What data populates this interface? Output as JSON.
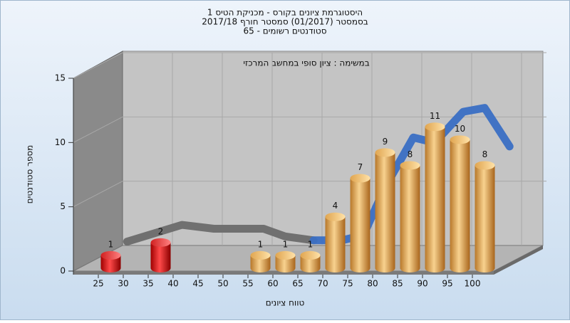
{
  "chart_data": {
    "type": "histogram",
    "title_lines": [
      "היסטוגרמת ציונים בקורס - מכניקת הטיס 1",
      "בסמסטר  (01/2017)  סמסטר חורף 2017/18",
      "סטודנטים רשומים - 65"
    ],
    "annotation": "במשימה : ציון סופי במחשב המרכזי",
    "xlabel": "טווח ציונים",
    "ylabel": "מספר סטודנטים",
    "bins": [
      25,
      30,
      35,
      40,
      45,
      50,
      55,
      60,
      65,
      70,
      75,
      80,
      85,
      90,
      95,
      100,
      105
    ],
    "values": [
      1,
      0,
      2,
      0,
      0,
      0,
      1,
      1,
      1,
      4,
      7,
      9,
      8,
      11,
      10,
      8
    ],
    "colors": [
      "red",
      "red",
      "red",
      "red",
      "red",
      "red",
      "orange",
      "orange",
      "orange",
      "orange",
      "orange",
      "orange",
      "orange",
      "orange",
      "orange",
      "orange"
    ],
    "xlim": [
      20,
      105
    ],
    "xticks": [
      25,
      30,
      35,
      40,
      45,
      50,
      55,
      60,
      65,
      70,
      75,
      80,
      85,
      90,
      95,
      100
    ],
    "ylim": [
      0,
      15
    ],
    "yticks": [
      0,
      5,
      10,
      15
    ],
    "grid": true,
    "curves": [
      {
        "color": "#6b6b6b",
        "x": [
          20.9,
          31.9,
          38.3,
          48.3,
          52.6,
          58.3
        ],
        "values": [
          0.3,
          1.6,
          1.3,
          1.3,
          0.7,
          0.4
        ]
      },
      {
        "color": "#3a6fc4",
        "x": [
          58.3,
          64,
          68.3,
          72.6,
          78.3,
          82.6,
          88.3,
          92.6,
          97.6
        ],
        "values": [
          0.4,
          0.4,
          0.8,
          4.5,
          8.4,
          8,
          10.4,
          10.7,
          7.7
        ]
      }
    ]
  }
}
